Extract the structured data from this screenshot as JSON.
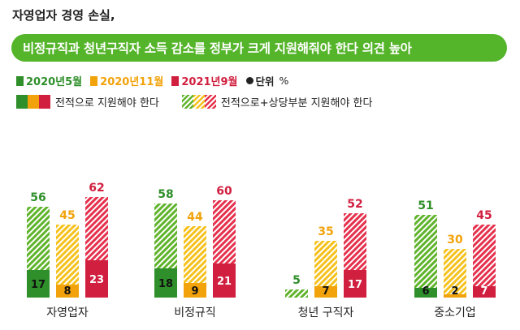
{
  "header": {
    "title": "자영업자 경영 손실,",
    "subtitle": "비정규직과 청년구직자 소득 감소를 정부가 크게 지원해줘야 한다 의견 높아"
  },
  "legend": {
    "unit_label": "단위",
    "unit_symbol": "%",
    "solid_label": "전적으로 지원해야 한다",
    "hatched_label": "전적으로+상당부분 지원해야 한다"
  },
  "colors": {
    "green": "#5fb42b",
    "green_dark": "#2f8f2a",
    "yellow": "#f5c11d",
    "yellow_dark": "#f2a20a",
    "red": "#e5314d",
    "red_dark": "#d11f3f",
    "pill": "#54b42a"
  },
  "chart_data": {
    "type": "bar",
    "categories": [
      "자영업자",
      "비정규직",
      "청년 구직자",
      "중소기업"
    ],
    "series": [
      {
        "name": "2020년5월",
        "color": "green",
        "total": [
          56,
          58,
          5,
          51
        ],
        "fully": [
          17,
          18,
          null,
          6
        ]
      },
      {
        "name": "2020년11월",
        "color": "yellow",
        "total": [
          45,
          44,
          35,
          30
        ],
        "fully": [
          8,
          9,
          7,
          2
        ]
      },
      {
        "name": "2021년9월",
        "color": "red",
        "total": [
          62,
          60,
          52,
          45
        ],
        "fully": [
          23,
          21,
          17,
          7
        ]
      }
    ],
    "ylim": [
      0,
      65
    ]
  }
}
